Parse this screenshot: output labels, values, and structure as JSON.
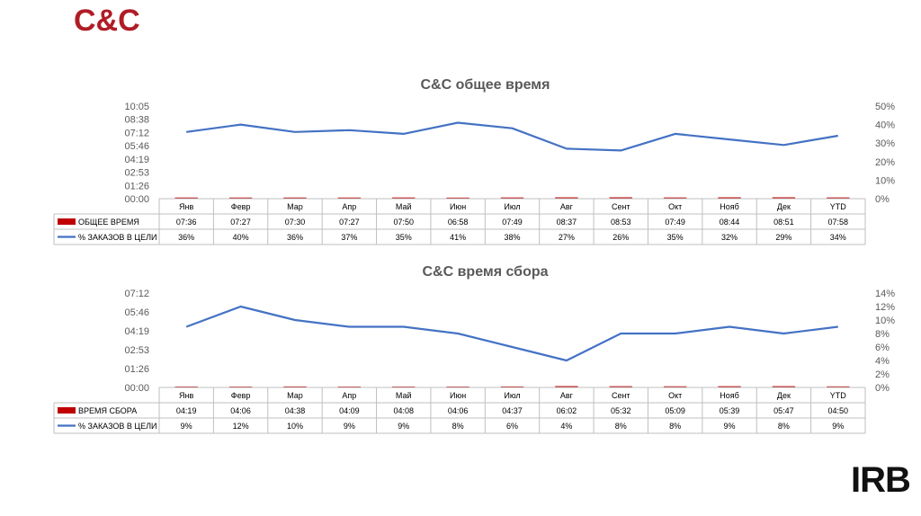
{
  "slide": {
    "title": "С&С"
  },
  "logo": "IRB",
  "chart_data": [
    {
      "type": "bar",
      "title": "С&С общее время",
      "categories": [
        "Янв",
        "Февр",
        "Мар",
        "Апр",
        "Май",
        "Июн",
        "Июл",
        "Авг",
        "Сент",
        "Окт",
        "Нояб",
        "Дек",
        "YTD"
      ],
      "series": [
        {
          "name": "ОБЩЕЕ ВРЕМЯ",
          "kind": "bar",
          "axis": "left",
          "color": "#c00000",
          "values": [
            "07:36",
            "07:27",
            "07:30",
            "07:27",
            "07:50",
            "06:58",
            "07:49",
            "08:37",
            "08:53",
            "07:49",
            "08:44",
            "08:51",
            "07:58"
          ]
        },
        {
          "name": "% ЗАКАЗОВ В ЦЕЛИ",
          "kind": "line",
          "axis": "right",
          "color": "#4472c4",
          "values": [
            "36%",
            "40%",
            "36%",
            "37%",
            "35%",
            "41%",
            "38%",
            "27%",
            "26%",
            "35%",
            "32%",
            "29%",
            "34%"
          ]
        }
      ],
      "y_left_ticks": [
        "00:00",
        "01:26",
        "02:53",
        "04:19",
        "05:46",
        "07:12",
        "08:38",
        "10:05"
      ],
      "y_left_max_minutes": 605,
      "y_right_ticks": [
        "0%",
        "10%",
        "20%",
        "30%",
        "40%",
        "50%"
      ],
      "y_right_max": 50
    },
    {
      "type": "bar",
      "title": "С&С время сбора",
      "categories": [
        "Янв",
        "Февр",
        "Мар",
        "Апр",
        "Май",
        "Июн",
        "Июл",
        "Авг",
        "Сент",
        "Окт",
        "Нояб",
        "Дек",
        "YTD"
      ],
      "series": [
        {
          "name": "ВРЕМЯ СБОРА",
          "kind": "bar",
          "axis": "left",
          "color": "#c00000",
          "values": [
            "04:19",
            "04:06",
            "04:38",
            "04:09",
            "04:08",
            "04:06",
            "04:37",
            "06:02",
            "05:32",
            "05:09",
            "05:39",
            "05:47",
            "04:50"
          ]
        },
        {
          "name": "% ЗАКАЗОВ В ЦЕЛИ",
          "kind": "line",
          "axis": "right",
          "color": "#4472c4",
          "values": [
            "9%",
            "12%",
            "10%",
            "9%",
            "9%",
            "8%",
            "6%",
            "4%",
            "8%",
            "8%",
            "9%",
            "8%",
            "9%"
          ]
        }
      ],
      "y_left_ticks": [
        "00:00",
        "01:26",
        "02:53",
        "04:19",
        "05:46",
        "07:12"
      ],
      "y_left_max_minutes": 432,
      "y_right_ticks": [
        "0%",
        "2%",
        "4%",
        "6%",
        "8%",
        "10%",
        "12%",
        "14%"
      ],
      "y_right_max": 14
    }
  ]
}
